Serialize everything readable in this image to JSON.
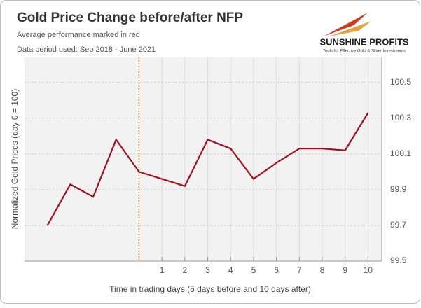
{
  "chart_data": {
    "type": "line",
    "title": "Gold Price Change before/after NFP",
    "subtitle": "Average performance marked in red",
    "note": "Data period used: Sep 2018 - June 2021",
    "brand": "SUNSHINE PROFITS",
    "brand_tagline": "Tools for Effective Gold & Silver Investments",
    "x_label": "Time in trading days  (5 days before and 10 days after)",
    "y_label": "Normalized Gold Prices (day 0 = 100)",
    "x": [
      -4,
      -3,
      -2,
      -1,
      0,
      1,
      2,
      3,
      4,
      5,
      6,
      7,
      8,
      9,
      10
    ],
    "series": [
      {
        "name": "Average performance",
        "color": "#a50f1e",
        "values": [
          99.7,
          99.93,
          99.86,
          100.18,
          100.0,
          99.96,
          99.92,
          100.18,
          100.13,
          99.96,
          100.05,
          100.13,
          100.13,
          100.12,
          100.33
        ]
      }
    ],
    "xlim": [
      -5,
      10.6
    ],
    "xticks": [
      1,
      2,
      3,
      4,
      5,
      6,
      7,
      8,
      9,
      10
    ],
    "ylim": [
      99.5,
      100.64
    ],
    "yticks": [
      99.5,
      99.7,
      99.9,
      100.1,
      100.3,
      100.5
    ],
    "y_axis_side": "right",
    "grid": true,
    "vline": 0,
    "vline_color": "#b8860b"
  }
}
